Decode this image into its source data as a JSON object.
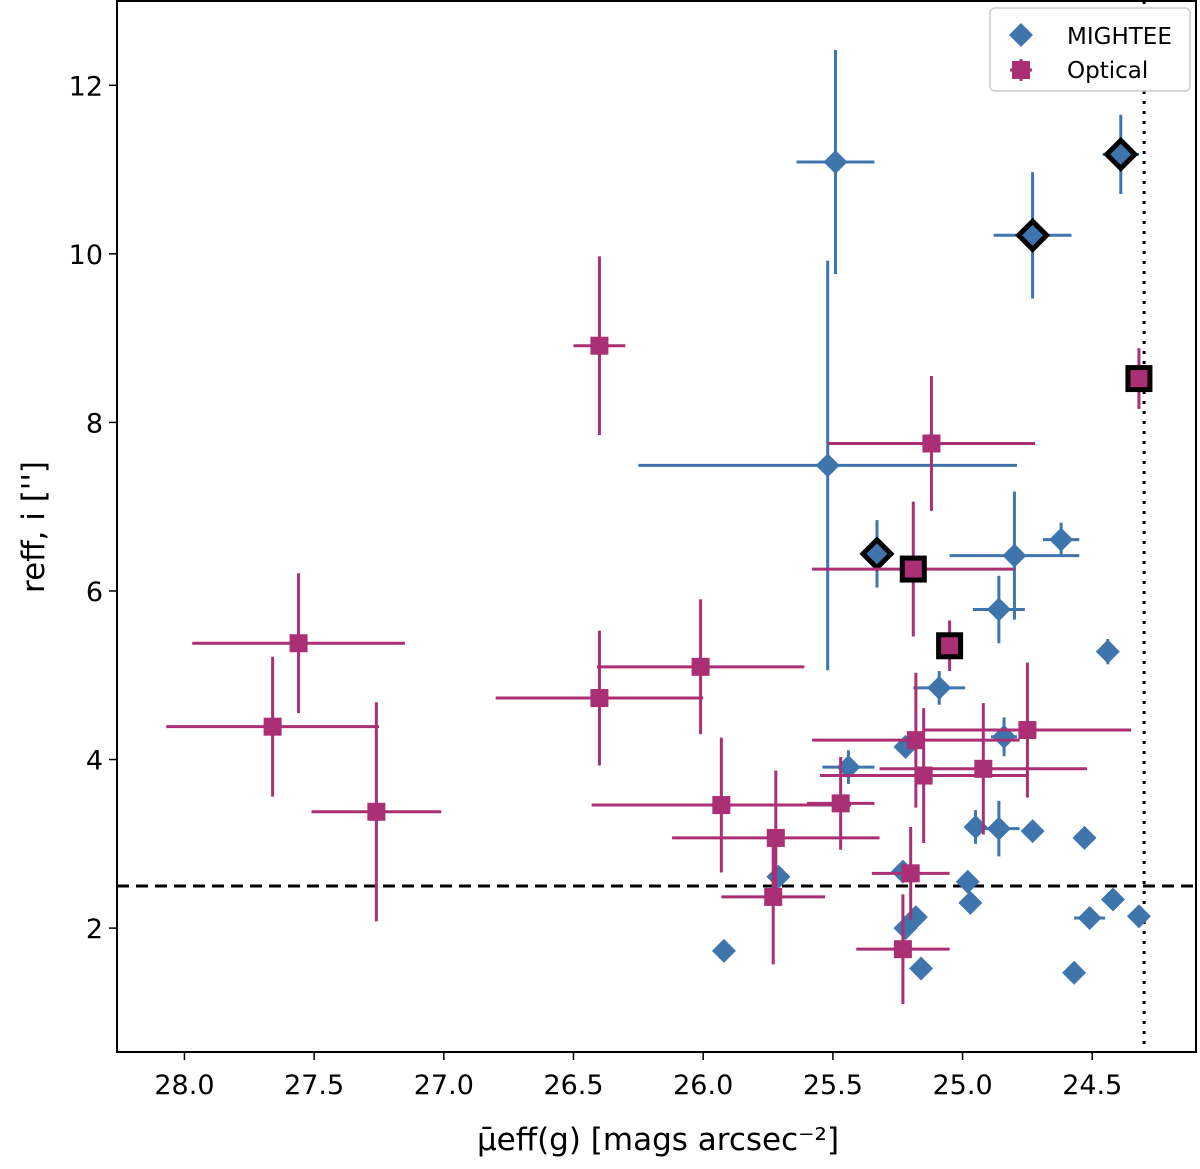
{
  "chart_data": {
    "type": "scatter",
    "xlabel": "μ̄eff(g) [mags arcsec⁻²]",
    "xlabel_parts": {
      "mu": "μ",
      "sub": "eff",
      "rest": "(g) [mags arcsec",
      "sup": "−2",
      "close": "]"
    },
    "ylabel": "reff, i ['']",
    "ylabel_parts": {
      "r": "r",
      "sub": "eff, i",
      "rest": " [″]"
    },
    "xlim": [
      28.26,
      24.1
    ],
    "x_reversed": true,
    "ylim": [
      0.53,
      13.0
    ],
    "xticks": [
      "28.0",
      "27.5",
      "27.0",
      "26.5",
      "26.0",
      "25.5",
      "25.0",
      "24.5"
    ],
    "yticks": [
      "2",
      "4",
      "6",
      "8",
      "10",
      "12"
    ],
    "grid": false,
    "legend": "top-right",
    "hline": {
      "y": 2.5,
      "style": "dashed",
      "color": "#000000"
    },
    "vline": {
      "x": 24.3,
      "style": "dotted",
      "color": "#000000"
    },
    "series": [
      {
        "name": "MIGHTEE",
        "marker": "diamond",
        "color": "#3f75ad",
        "points": [
          {
            "x": 25.49,
            "y": 11.09,
            "xerr": 0.15,
            "yerr": 1.33
          },
          {
            "x": 24.39,
            "y": 11.18,
            "xerr": 0.07,
            "yerr": 0.47,
            "highlighted": true
          },
          {
            "x": 24.73,
            "y": 10.22,
            "xerr": 0.15,
            "yerr": 0.75,
            "highlighted": true
          },
          {
            "x": 25.52,
            "y": 7.49,
            "xerr": 0.73,
            "yerr": 2.43
          },
          {
            "x": 25.33,
            "y": 6.44,
            "xerr": 0.05,
            "yerr": 0.4,
            "highlighted": true
          },
          {
            "x": 24.8,
            "y": 6.42,
            "xerr": 0.25,
            "yerr": 0.76
          },
          {
            "x": 24.62,
            "y": 6.61,
            "xerr": 0.07,
            "yerr": 0.2
          },
          {
            "x": 24.86,
            "y": 5.78,
            "xerr": 0.1,
            "yerr": 0.4
          },
          {
            "x": 24.44,
            "y": 5.28,
            "xerr": 0.02,
            "yerr": 0.15
          },
          {
            "x": 25.09,
            "y": 4.85,
            "xerr": 0.1,
            "yerr": 0.2
          },
          {
            "x": 24.84,
            "y": 4.27,
            "xerr": 0.05,
            "yerr": 0.23
          },
          {
            "x": 25.22,
            "y": 4.15,
            "xerr": 0.03,
            "yerr": 0.1
          },
          {
            "x": 25.44,
            "y": 3.91,
            "xerr": 0.1,
            "yerr": 0.2
          },
          {
            "x": 24.95,
            "y": 3.2,
            "xerr": 0.03,
            "yerr": 0.2
          },
          {
            "x": 24.86,
            "y": 3.18,
            "xerr": 0.08,
            "yerr": 0.33
          },
          {
            "x": 24.73,
            "y": 3.15,
            "xerr": 0.0,
            "yerr": 0.0
          },
          {
            "x": 24.53,
            "y": 3.07,
            "xerr": 0.0,
            "yerr": 0.0
          },
          {
            "x": 25.71,
            "y": 2.61,
            "xerr": 0.0,
            "yerr": 0.0
          },
          {
            "x": 25.23,
            "y": 2.67,
            "xerr": 0.0,
            "yerr": 0.0
          },
          {
            "x": 24.98,
            "y": 2.55,
            "xerr": 0.0,
            "yerr": 0.0
          },
          {
            "x": 24.97,
            "y": 2.3,
            "xerr": 0.0,
            "yerr": 0.0
          },
          {
            "x": 24.42,
            "y": 2.34,
            "xerr": 0.0,
            "yerr": 0.0
          },
          {
            "x": 24.51,
            "y": 2.12,
            "xerr": 0.06,
            "yerr": 0.0
          },
          {
            "x": 24.32,
            "y": 2.14,
            "xerr": 0.0,
            "yerr": 0.0
          },
          {
            "x": 25.18,
            "y": 2.13,
            "xerr": 0.0,
            "yerr": 0.0
          },
          {
            "x": 25.22,
            "y": 2.0,
            "xerr": 0.0,
            "yerr": 0.0
          },
          {
            "x": 25.92,
            "y": 1.73,
            "xerr": 0.0,
            "yerr": 0.0
          },
          {
            "x": 25.16,
            "y": 1.52,
            "xerr": 0.0,
            "yerr": 0.0
          },
          {
            "x": 24.57,
            "y": 1.47,
            "xerr": 0.0,
            "yerr": 0.0
          }
        ]
      },
      {
        "name": "Optical",
        "marker": "square",
        "color": "#aa2f74",
        "points": [
          {
            "x": 27.56,
            "y": 5.38,
            "xerr": 0.41,
            "yerr": 0.83
          },
          {
            "x": 27.66,
            "y": 4.39,
            "xerr": 0.41,
            "yerr": 0.83
          },
          {
            "x": 27.26,
            "y": 3.38,
            "xerr": 0.25,
            "yerr": 1.3
          },
          {
            "x": 26.4,
            "y": 8.91,
            "xerr": 0.1,
            "yerr": 1.06
          },
          {
            "x": 26.4,
            "y": 4.73,
            "xerr": 0.4,
            "yerr": 0.8
          },
          {
            "x": 26.01,
            "y": 5.1,
            "xerr": 0.4,
            "yerr": 0.8
          },
          {
            "x": 25.93,
            "y": 3.46,
            "xerr": 0.5,
            "yerr": 0.8
          },
          {
            "x": 25.72,
            "y": 3.07,
            "xerr": 0.4,
            "yerr": 0.8
          },
          {
            "x": 25.73,
            "y": 2.37,
            "xerr": 0.2,
            "yerr": 0.8
          },
          {
            "x": 25.47,
            "y": 3.48,
            "xerr": 0.13,
            "yerr": 0.55
          },
          {
            "x": 25.12,
            "y": 7.75,
            "xerr": 0.4,
            "yerr": 0.8
          },
          {
            "x": 25.19,
            "y": 6.26,
            "xerr": 0.39,
            "yerr": 0.8,
            "highlighted": true
          },
          {
            "x": 25.05,
            "y": 5.35,
            "xerr": 0.05,
            "yerr": 0.3,
            "highlighted": true
          },
          {
            "x": 24.32,
            "y": 8.52,
            "xerr": 0.0,
            "yerr": 0.36,
            "highlighted": true
          },
          {
            "x": 25.18,
            "y": 4.23,
            "xerr": 0.4,
            "yerr": 0.8
          },
          {
            "x": 24.75,
            "y": 4.35,
            "xerr": 0.4,
            "yerr": 0.8
          },
          {
            "x": 25.15,
            "y": 3.81,
            "xerr": 0.4,
            "yerr": 0.8
          },
          {
            "x": 24.92,
            "y": 3.89,
            "xerr": 0.4,
            "yerr": 0.78
          },
          {
            "x": 25.2,
            "y": 2.65,
            "xerr": 0.15,
            "yerr": 0.55
          },
          {
            "x": 25.23,
            "y": 1.75,
            "xerr": 0.18,
            "yerr": 0.65
          }
        ]
      }
    ]
  }
}
